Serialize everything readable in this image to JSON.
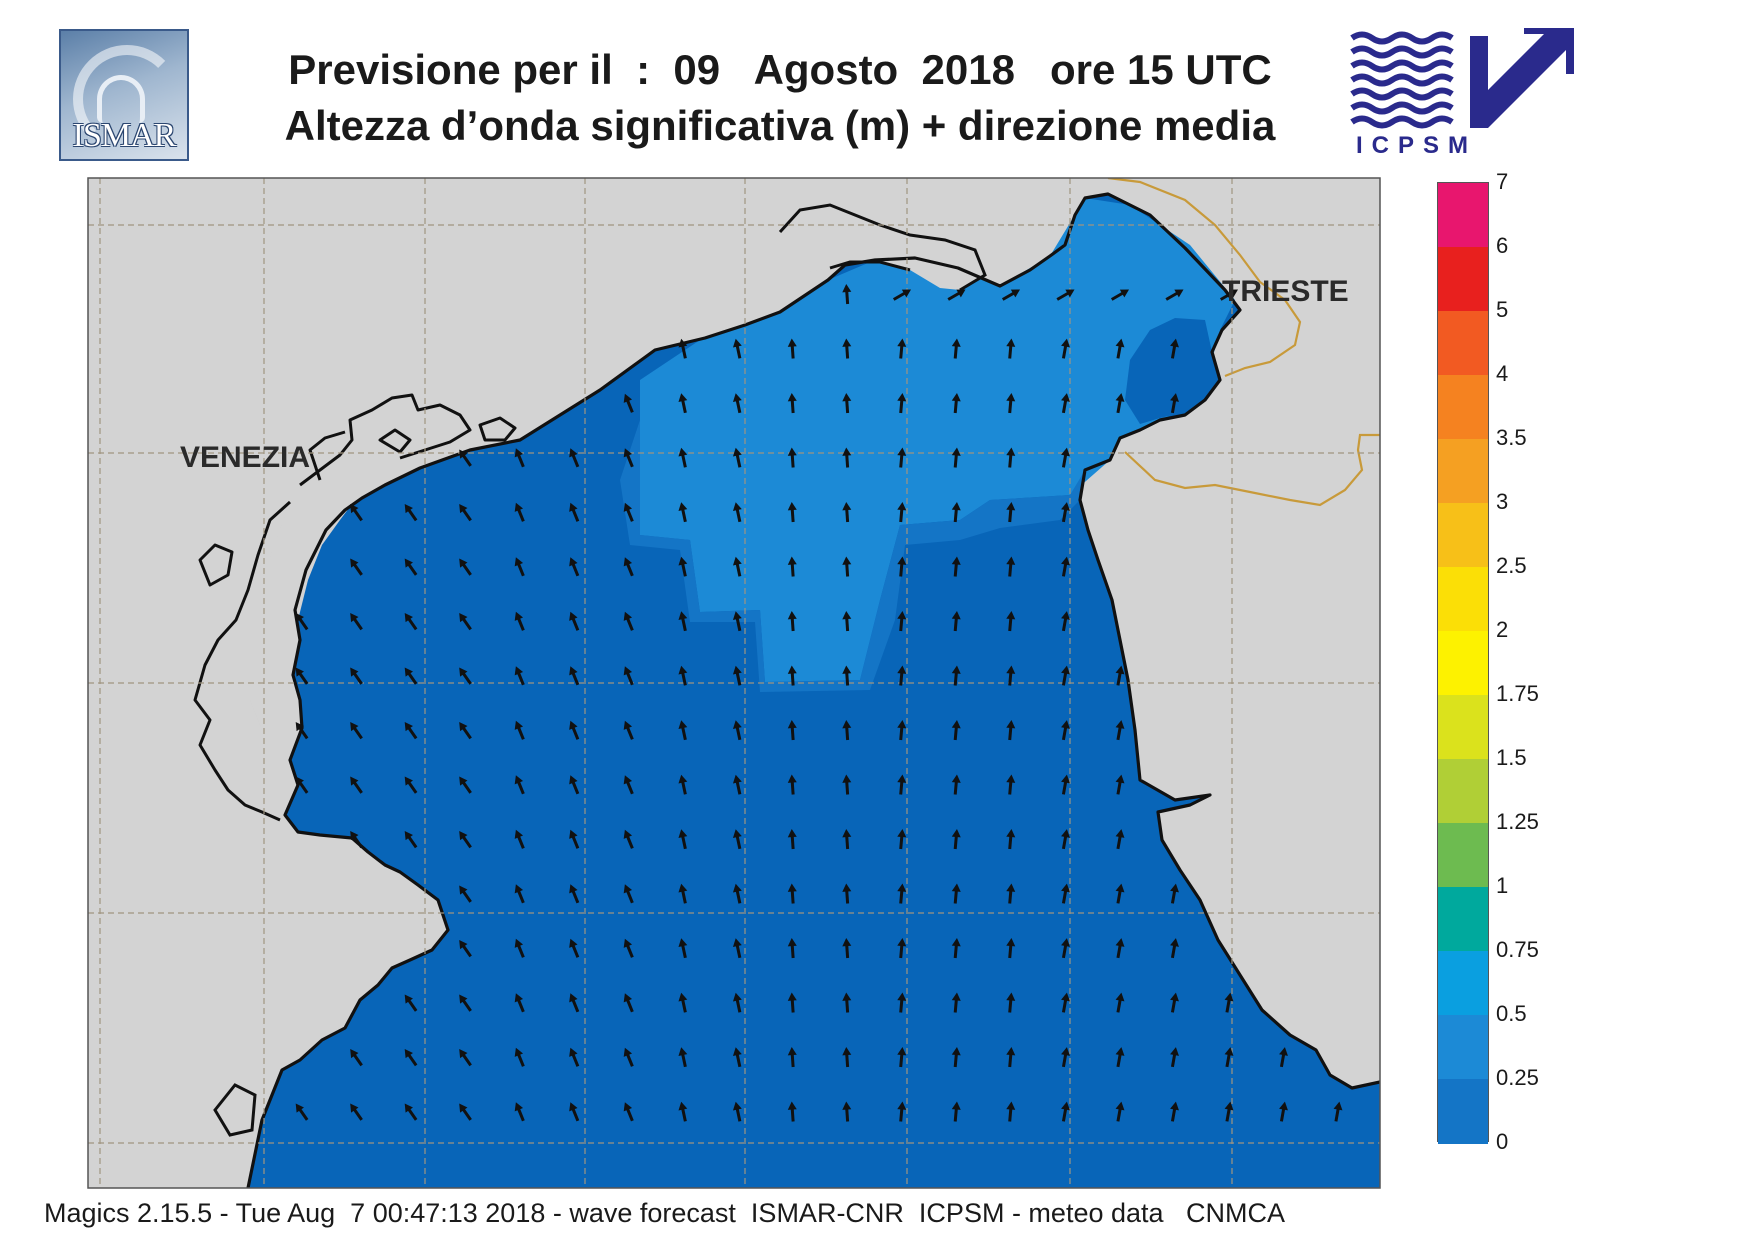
{
  "header": {
    "title_line1": "Previsione per il  :  09   Agosto  2018   ore 15 UTC",
    "title_line2": "Altezza d’onda significativa (m) + direzione media"
  },
  "logos": {
    "left": {
      "name": "ISMAR",
      "text": "ISMAR"
    },
    "right": {
      "name": "ICPSM",
      "text": "ICPSM"
    }
  },
  "map": {
    "cities": [
      {
        "name": "VENEZIA"
      },
      {
        "name": "TRIESTE"
      }
    ],
    "colors": {
      "land": "#d3d3d3",
      "sea_0_025": "#0865b8",
      "sea_025_05": "#1475c6",
      "sea_05_075": "#1c8ad6",
      "border": "#c89a3a",
      "coast": "#111111",
      "grid": "#a09580"
    },
    "wave_direction": "north to north-west, weak"
  },
  "legend": {
    "title": "",
    "levels": [
      "7",
      "6",
      "5",
      "4",
      "3.5",
      "3",
      "2.5",
      "2",
      "1.75",
      "1.5",
      "1.25",
      "1",
      "0.75",
      "0.5",
      "0.25",
      "0"
    ],
    "colors": [
      "#e8166e",
      "#e8201e",
      "#f25a22",
      "#f58220",
      "#f5a022",
      "#f7c018",
      "#fbdf06",
      "#fdf200",
      "#dbe21c",
      "#b0cf36",
      "#6dbb50",
      "#00a99d",
      "#0a9fe0",
      "#1c8ad6",
      "#1475c6",
      "#0865b8"
    ]
  },
  "footer": {
    "text": "Magics 2.15.5 - Tue Aug  7 00:47:13 2018 - wave forecast  ISMAR-CNR  ICPSM - meteo data   CNMCA"
  }
}
